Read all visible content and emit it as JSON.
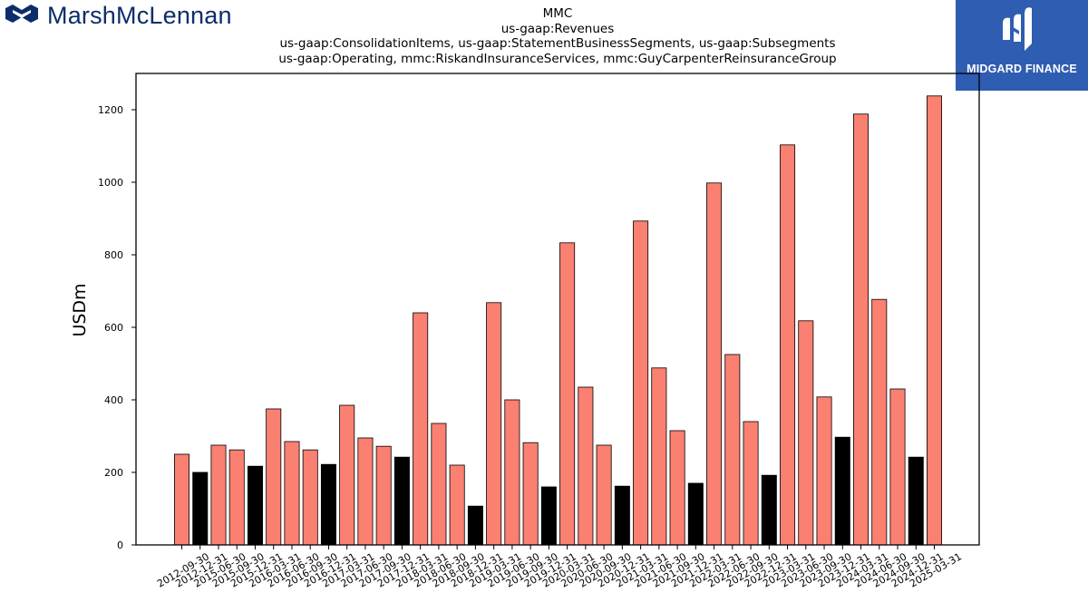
{
  "logos": {
    "left": {
      "text": "MarshMcLennan",
      "icon": "marsh-mclennan-chevron-icon",
      "color": "#0b2d6b"
    },
    "right": {
      "text": "MIDGARD FINANCE",
      "icon": "midgard-m-icon",
      "background": "#2f5db1"
    }
  },
  "chart_data": {
    "type": "bar",
    "title": [
      "MMC",
      "us-gaap:Revenues",
      "us-gaap:ConsolidationItems, us-gaap:StatementBusinessSegments, us-gaap:Subsegments",
      "us-gaap:Operating, mmc:RiskandInsuranceServices, mmc:GuyCarpenterReinsuranceGroup"
    ],
    "xlabel": "",
    "ylabel": "USDm",
    "ylim": [
      0,
      1300
    ],
    "yticks": [
      0,
      200,
      400,
      600,
      800,
      1000,
      1200
    ],
    "grid": false,
    "legend": "none",
    "colors": {
      "default": "#fa8072",
      "q4": "#000000",
      "edge": "#000000"
    },
    "categories": [
      "2012-09-30",
      "2012-12-31",
      "2015-06-30",
      "2015-09-30",
      "2015-12-31",
      "2016-03-31",
      "2016-06-30",
      "2016-09-30",
      "2016-12-31",
      "2017-03-31",
      "2017-06-30",
      "2017-09-30",
      "2017-12-31",
      "2018-03-31",
      "2018-06-30",
      "2018-09-30",
      "2018-12-31",
      "2019-03-31",
      "2019-06-30",
      "2019-09-30",
      "2019-12-31",
      "2020-03-31",
      "2020-06-30",
      "2020-09-30",
      "2020-12-31",
      "2021-03-31",
      "2021-06-30",
      "2021-09-30",
      "2021-12-31",
      "2022-03-31",
      "2022-06-30",
      "2022-09-30",
      "2022-12-31",
      "2023-03-31",
      "2023-06-30",
      "2023-09-30",
      "2023-12-31",
      "2024-03-31",
      "2024-06-30",
      "2024-09-30",
      "2024-12-31",
      "2025-03-31"
    ],
    "values": [
      250,
      200,
      275,
      262,
      217,
      375,
      285,
      262,
      222,
      385,
      295,
      272,
      242,
      640,
      335,
      220,
      107,
      668,
      400,
      282,
      160,
      833,
      435,
      275,
      162,
      893,
      488,
      315,
      170,
      998,
      525,
      340,
      192,
      1103,
      618,
      408,
      297,
      1188,
      677,
      430,
      242,
      1238
    ]
  }
}
